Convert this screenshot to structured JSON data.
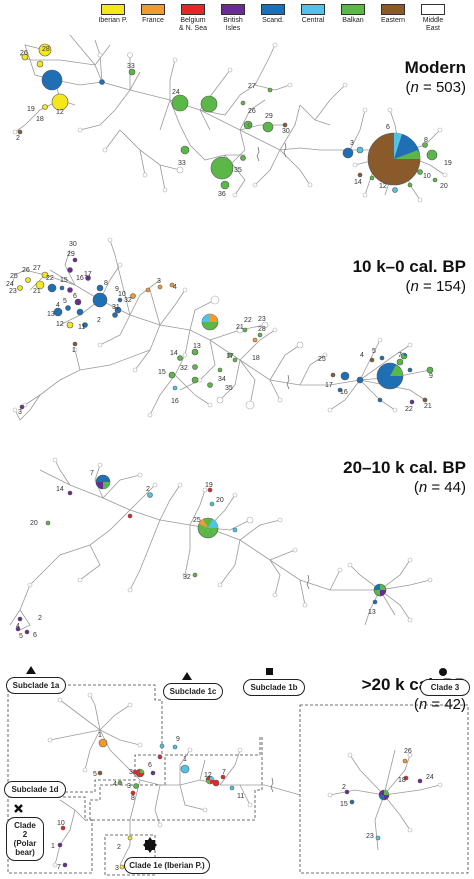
{
  "legend": [
    {
      "label": "Iberian P.",
      "color": "#f4e81c"
    },
    {
      "label": "France",
      "color": "#f29a2e"
    },
    {
      "label": "Belgium & N. Sea",
      "color": "#e8262a"
    },
    {
      "label": "British Isles",
      "color": "#6a2c91"
    },
    {
      "label": "Scand.",
      "color": "#1f6fb4"
    },
    {
      "label": "Central",
      "color": "#4fc4e6"
    },
    {
      "label": "Balkan",
      "color": "#5bb848"
    },
    {
      "label": "Eastern",
      "color": "#8b5a2b"
    },
    {
      "label": "Middle East",
      "color": "#ffffff"
    }
  ],
  "panels": [
    {
      "title": "Modern",
      "n_prefix": "n",
      "n_value": "= 503"
    },
    {
      "title": "10 k–0 cal. BP",
      "n_prefix": "n",
      "n_value": "= 154"
    },
    {
      "title": "20–10 k cal. BP",
      "n_prefix": "n",
      "n_value": "= 44"
    },
    {
      "title": ">20 k cal. BP",
      "n_prefix": "n",
      "n_value": "= 42"
    }
  ],
  "clades": {
    "subclade_1a": "Subclade 1a",
    "subclade_1b": "Subclade 1b",
    "subclade_1c": "Subclade 1c",
    "subclade_1d": "Subclade 1d",
    "clade_2": "Clade 2 (Polar bear)",
    "clade_3": "Clade 3",
    "clade_1e": "Clade 1e (Iberian P.)"
  },
  "node_labels": {
    "p1": [
      "26",
      "28",
      "19",
      "18",
      "12",
      "2",
      "33",
      "24",
      "27",
      "26",
      "29",
      "30",
      "33",
      "35",
      "36",
      "3",
      "6",
      "8",
      "19",
      "14",
      "12",
      "10",
      "20"
    ],
    "p2": [
      "30",
      "29",
      "26",
      "27",
      "25",
      "24",
      "23",
      "22",
      "21",
      "15",
      "16",
      "17",
      "8",
      "9",
      "10",
      "32",
      "31",
      "6",
      "5",
      "4",
      "13",
      "2",
      "11",
      "12",
      "3",
      "4",
      "1",
      "21",
      "22",
      "23",
      "28",
      "14",
      "13",
      "15",
      "32",
      "34",
      "17",
      "18",
      "35",
      "16",
      "25",
      "4",
      "5",
      "7",
      "17",
      "16",
      "9",
      "22",
      "21",
      "3"
    ],
    "p3": [
      "14",
      "7",
      "2",
      "20",
      "19",
      "20",
      "25",
      "32",
      "13",
      "2",
      "4",
      "5",
      "6"
    ],
    "p4": [
      "1",
      "3",
      "9",
      "5",
      "4",
      "3",
      "6",
      "8",
      "12",
      "7",
      "11",
      "1",
      "26",
      "18",
      "24",
      "2",
      "15",
      "23",
      "10",
      "1",
      "7",
      "3",
      "2"
    ]
  }
}
